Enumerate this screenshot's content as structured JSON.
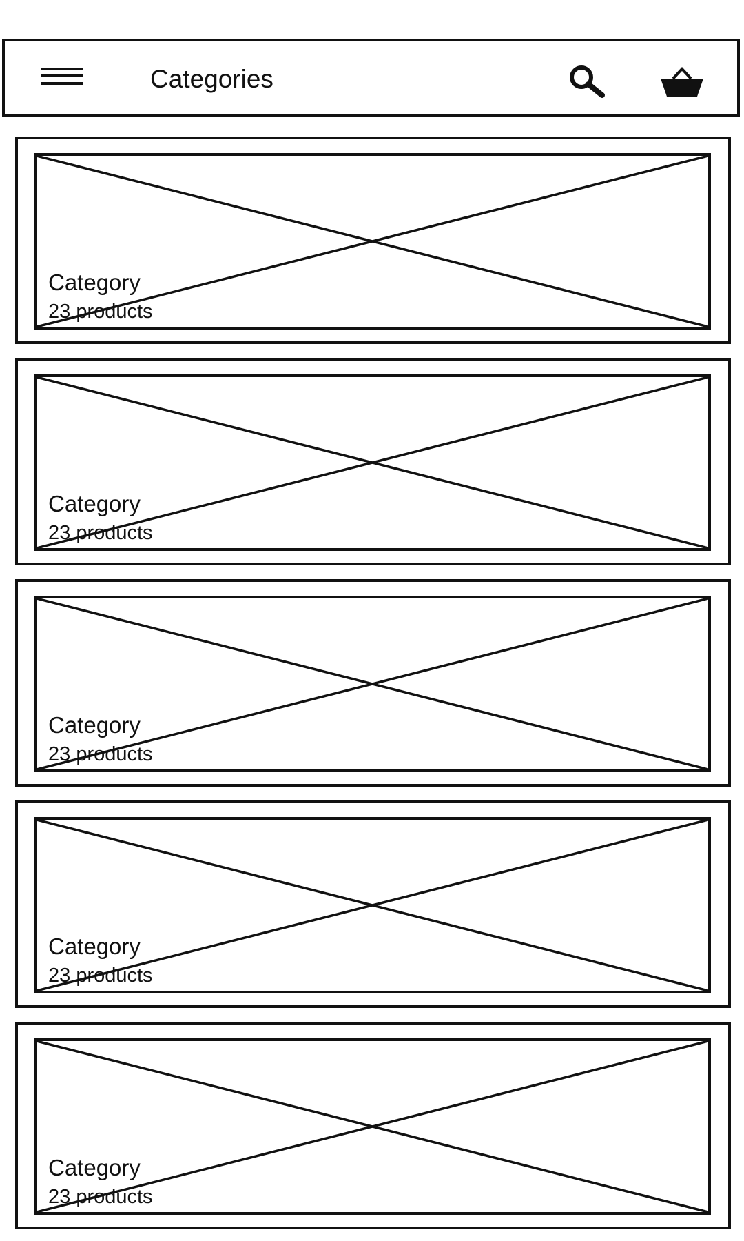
{
  "appbar": {
    "title": "Categories",
    "menu_icon": "hamburger-menu-icon",
    "search_icon": "search-icon",
    "cart_icon": "shopping-basket-icon"
  },
  "categories": [
    {
      "name": "Category",
      "count": "23 products"
    },
    {
      "name": "Category",
      "count": "23 products"
    },
    {
      "name": "Category",
      "count": "23 products"
    },
    {
      "name": "Category",
      "count": "23 products"
    },
    {
      "name": "Category",
      "count": "23 products"
    }
  ]
}
